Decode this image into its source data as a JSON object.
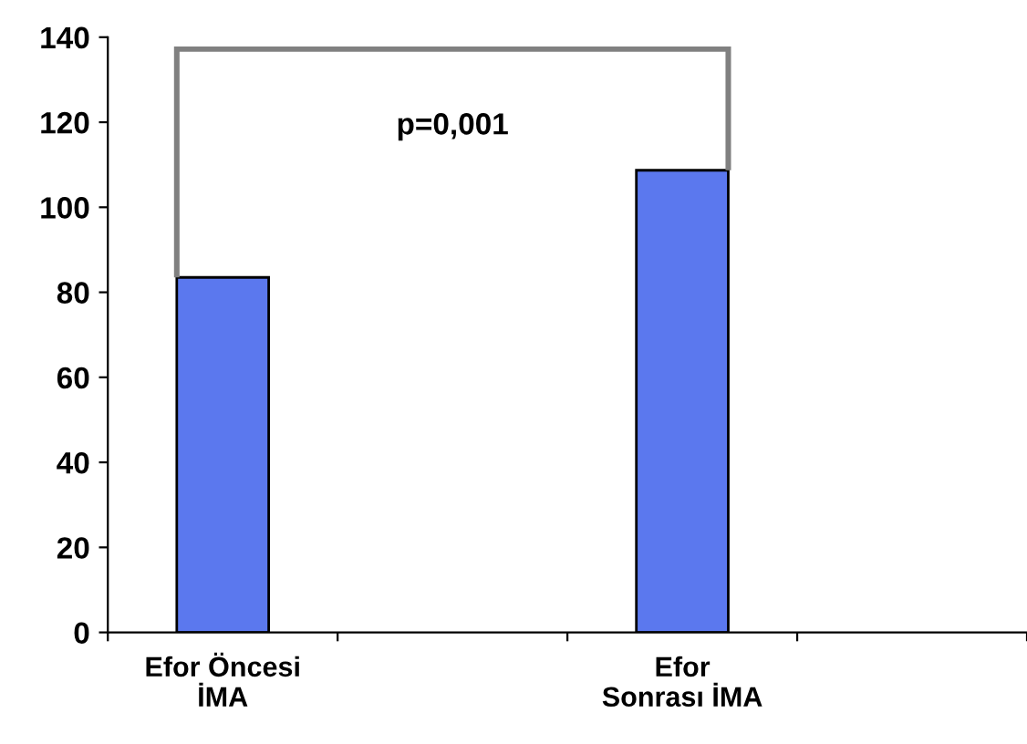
{
  "chart_data": {
    "type": "bar",
    "categories": [
      "Efor Öncesi\nİMA",
      null,
      "Efor\nSonrası İMA",
      null
    ],
    "values": [
      83.5,
      null,
      108.7,
      null
    ],
    "color": "#5b78ee",
    "ylim": [
      0,
      140
    ],
    "yticks": [
      0,
      20,
      40,
      60,
      80,
      100,
      120,
      140
    ],
    "grid": false,
    "legend": false,
    "annotations": [
      "p=0,001"
    ]
  }
}
